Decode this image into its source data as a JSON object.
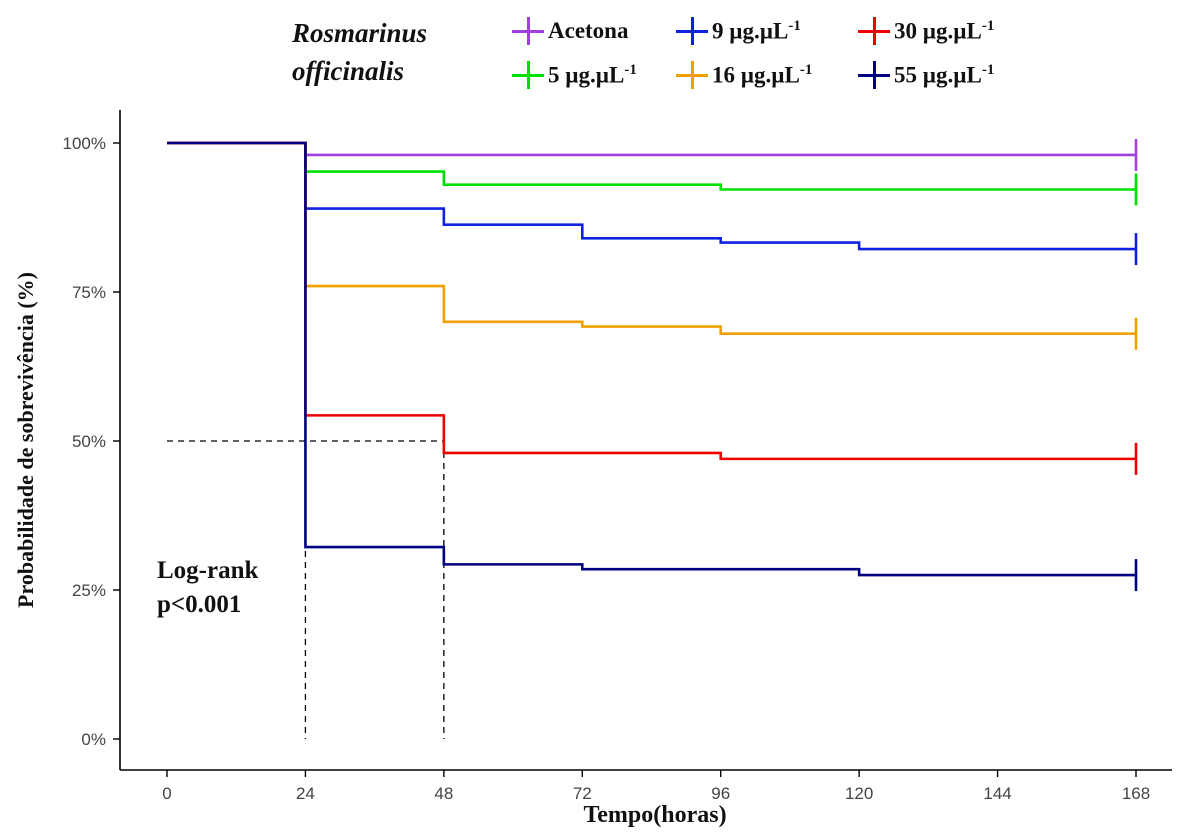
{
  "legend": {
    "title_line1": "Rosmarinus",
    "title_line2": "officinalis",
    "superscript": "-1"
  },
  "annotation": {
    "line1": "Log-rank",
    "line2": "p<0.001"
  },
  "chart_data": {
    "type": "line",
    "xlabel": "Tempo(horas)",
    "ylabel": "Probabilidade de sobrevivência (%)",
    "xlim": [
      0,
      168
    ],
    "ylim": [
      0,
      1
    ],
    "x_ticks": [
      0,
      24,
      48,
      72,
      96,
      120,
      144,
      168
    ],
    "y_ticks": [
      0,
      0.25,
      0.5,
      0.75,
      1.0
    ],
    "y_tick_labels": [
      "0%",
      "25%",
      "50%",
      "75%",
      "100%"
    ],
    "median_reference": {
      "y": 0.5,
      "x": [
        24,
        48
      ]
    },
    "series": [
      {
        "name": "Acetona",
        "label_base": "Acetona",
        "unit": "",
        "color": "#a040e0",
        "times": [
          0,
          24,
          168
        ],
        "survival": [
          1.0,
          0.98,
          0.98
        ]
      },
      {
        "name": "5 µg.µL-1",
        "label_base": "5 µg.µL",
        "unit": "-1",
        "color": "#00e000",
        "times": [
          0,
          24,
          48,
          96,
          168
        ],
        "survival": [
          1.0,
          0.952,
          0.93,
          0.922,
          0.922
        ]
      },
      {
        "name": "9 µg.µL-1",
        "label_base": "9 µg.µL",
        "unit": "-1",
        "color": "#1020e0",
        "times": [
          0,
          24,
          48,
          72,
          96,
          120,
          168
        ],
        "survival": [
          1.0,
          0.89,
          0.863,
          0.84,
          0.833,
          0.822,
          0.822
        ]
      },
      {
        "name": "16 µg.µL-1",
        "label_base": "16 µg.µL",
        "unit": "-1",
        "color": "#f0a000",
        "times": [
          0,
          24,
          48,
          72,
          96,
          168
        ],
        "survival": [
          1.0,
          0.76,
          0.7,
          0.692,
          0.68,
          0.68
        ]
      },
      {
        "name": "30 µg.µL-1",
        "label_base": "30 µg.µL",
        "unit": "-1",
        "color": "#ee0000",
        "times": [
          0,
          24,
          48,
          96,
          168
        ],
        "survival": [
          1.0,
          0.543,
          0.48,
          0.47,
          0.47
        ]
      },
      {
        "name": "55 µg.µL-1",
        "label_base": "55 µg.µL",
        "unit": "-1",
        "color": "#000080",
        "times": [
          0,
          24,
          48,
          72,
          120,
          168
        ],
        "survival": [
          1.0,
          0.322,
          0.293,
          0.285,
          0.275,
          0.275
        ]
      }
    ]
  }
}
